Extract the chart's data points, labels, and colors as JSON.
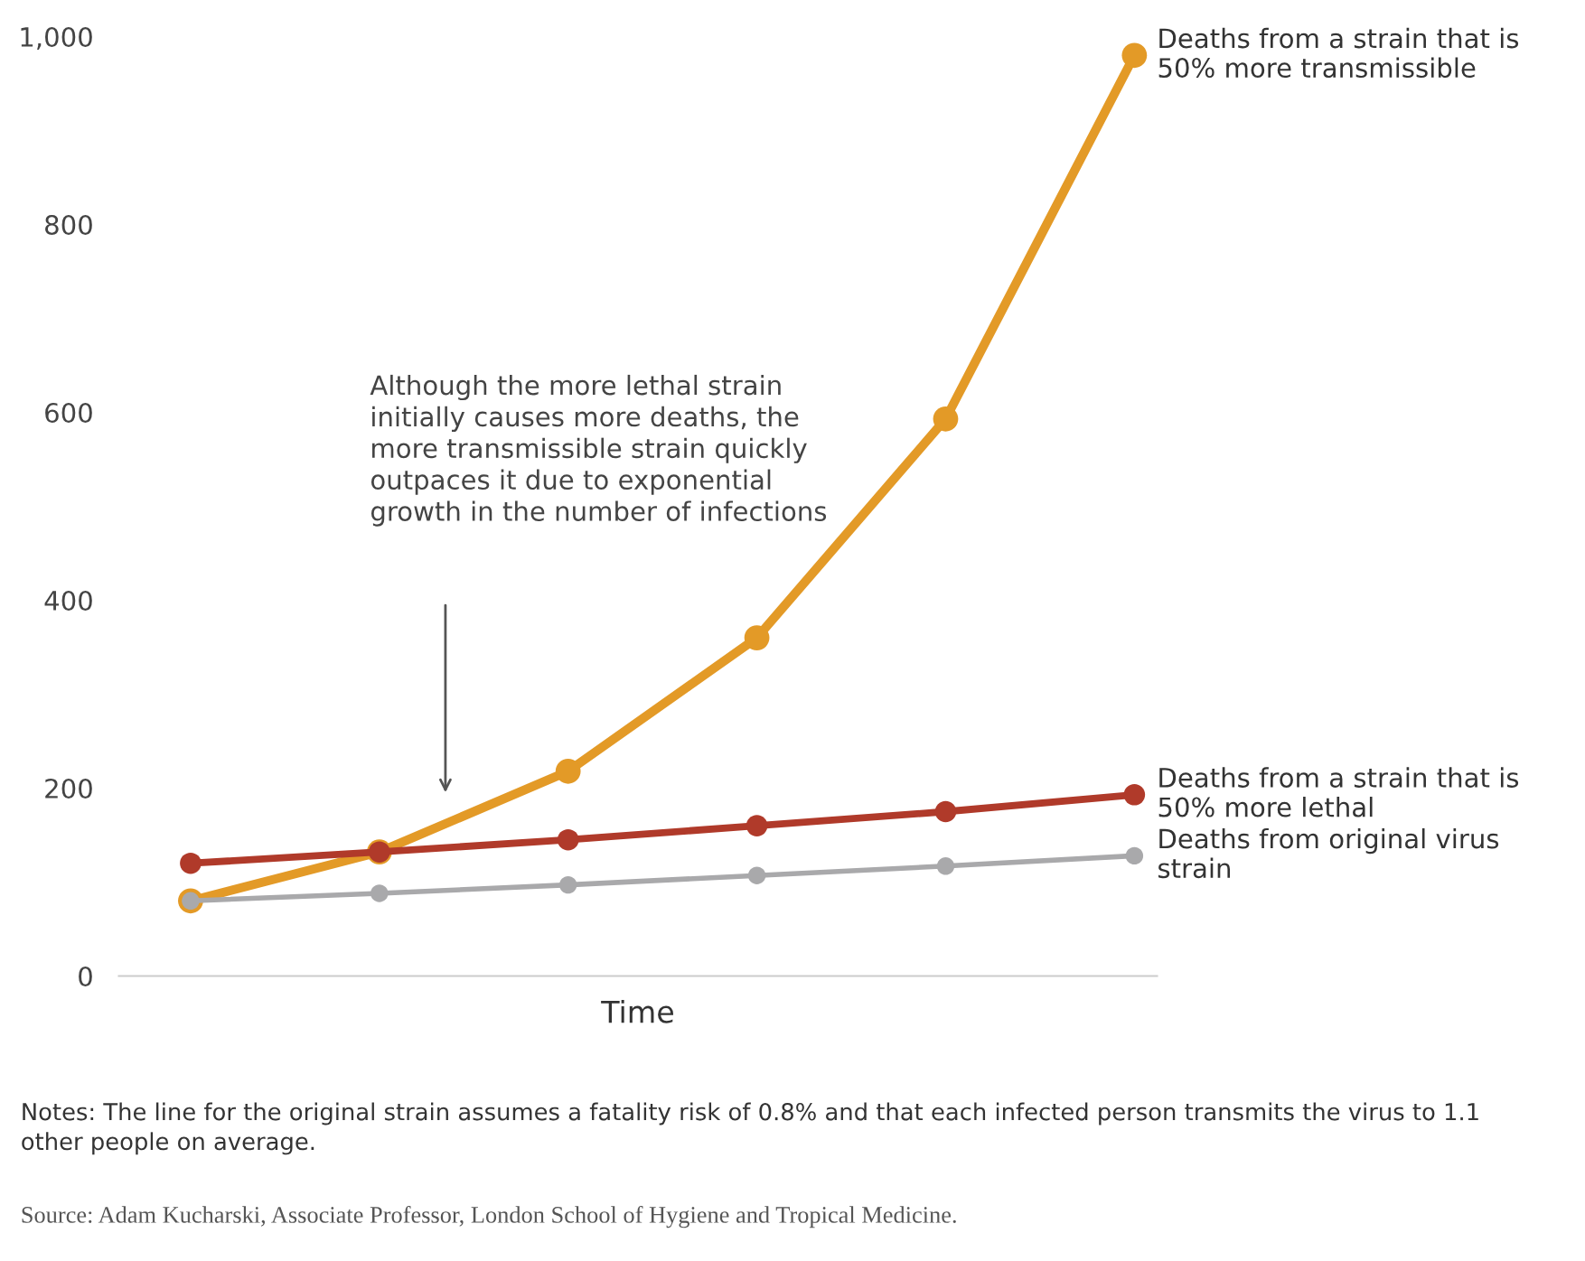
{
  "chart_data": {
    "type": "line",
    "xlabel": "Time",
    "categories": [
      null,
      null,
      null,
      null,
      null,
      null
    ],
    "series": [
      {
        "name": "Deaths from a strain that is\n50% more transmissible",
        "color": "#e39a27",
        "values": [
          80,
          132,
          218,
          360,
          593,
          980
        ]
      },
      {
        "name": "Deaths from a strain that is\n50% more lethal",
        "color": "#b03a2a",
        "values": [
          120,
          132,
          145,
          160,
          175,
          193
        ]
      },
      {
        "name": "Deaths from original virus\nstrain",
        "color": "#a9a9ab",
        "values": [
          80,
          88,
          97,
          107,
          117,
          128
        ]
      }
    ],
    "ylim": [
      0,
      1000
    ],
    "yticks": [
      0,
      200,
      400,
      600,
      800,
      {
        "value": 1000,
        "label": "1,000"
      }
    ],
    "grid": false,
    "legend": false,
    "marker": "circle",
    "line_style": "solid",
    "annotations": [
      "Although the more lethal strain\ninitially causes more deaths, the\nmore transmissible strain quickly\noutpaces it due to exponential\ngrowth in the number of infections",
      "Notes: The line for the original strain assumes a fatality risk of 0.8% and that each infected person transmits the virus to 1.1\nother people on average.",
      "Source: Adam Kucharski, Associate Professor, London School of Hygiene and Tropical Medicine."
    ]
  }
}
